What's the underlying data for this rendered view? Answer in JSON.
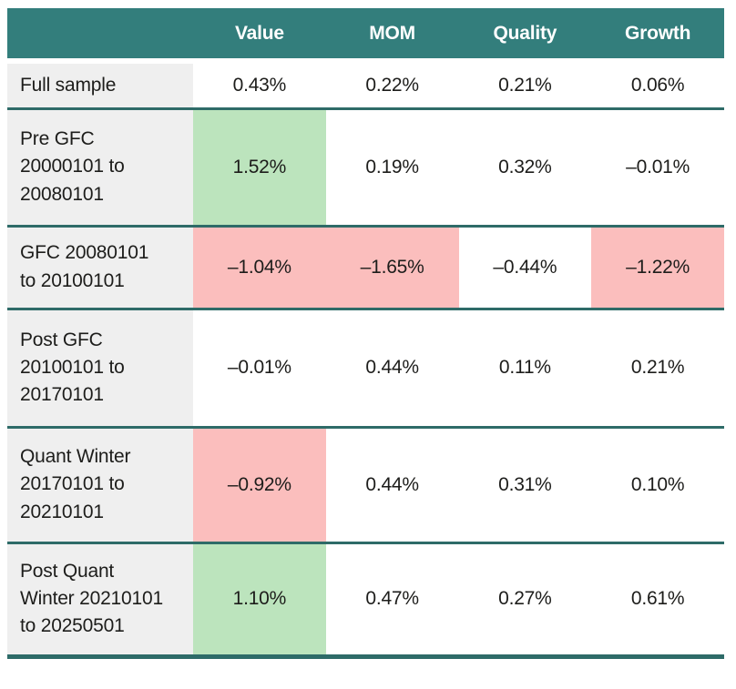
{
  "colors": {
    "header_bg": "#337e7c",
    "row_divider": "#2e6b68",
    "row_label_bg": "#efefef",
    "positive_highlight": "#bce4bd",
    "negative_highlight": "#fbbebd",
    "header_text": "#ffffff",
    "body_text": "#1d1d1b"
  },
  "chart_data": {
    "type": "table",
    "columns": [
      "",
      "Value",
      "MOM",
      "Quality",
      "Growth"
    ],
    "rows": [
      {
        "label": "Full sample",
        "cells": [
          {
            "value": "0.43%",
            "highlight": ""
          },
          {
            "value": "0.22%",
            "highlight": ""
          },
          {
            "value": "0.21%",
            "highlight": ""
          },
          {
            "value": "0.06%",
            "highlight": ""
          }
        ]
      },
      {
        "label": "Pre GFC 20000101 to 20080101",
        "cells": [
          {
            "value": "1.52%",
            "highlight": "green"
          },
          {
            "value": "0.19%",
            "highlight": ""
          },
          {
            "value": "0.32%",
            "highlight": ""
          },
          {
            "value": "–0.01%",
            "highlight": ""
          }
        ]
      },
      {
        "label": "GFC 20080101 to 20100101",
        "cells": [
          {
            "value": "–1.04%",
            "highlight": "red"
          },
          {
            "value": "–1.65%",
            "highlight": "red"
          },
          {
            "value": "–0.44%",
            "highlight": ""
          },
          {
            "value": "–1.22%",
            "highlight": "red"
          }
        ]
      },
      {
        "label": "Post GFC 20100101 to 20170101",
        "cells": [
          {
            "value": "–0.01%",
            "highlight": ""
          },
          {
            "value": "0.44%",
            "highlight": ""
          },
          {
            "value": "0.11%",
            "highlight": ""
          },
          {
            "value": "0.21%",
            "highlight": ""
          }
        ]
      },
      {
        "label": "Quant Winter 20170101 to 20210101",
        "cells": [
          {
            "value": "–0.92%",
            "highlight": "red"
          },
          {
            "value": "0.44%",
            "highlight": ""
          },
          {
            "value": "0.31%",
            "highlight": ""
          },
          {
            "value": "0.10%",
            "highlight": ""
          }
        ]
      },
      {
        "label": "Post Quant Winter 20210101 to 20250501",
        "cells": [
          {
            "value": "1.10%",
            "highlight": "green"
          },
          {
            "value": "0.47%",
            "highlight": ""
          },
          {
            "value": "0.27%",
            "highlight": ""
          },
          {
            "value": "0.61%",
            "highlight": ""
          }
        ]
      }
    ]
  }
}
